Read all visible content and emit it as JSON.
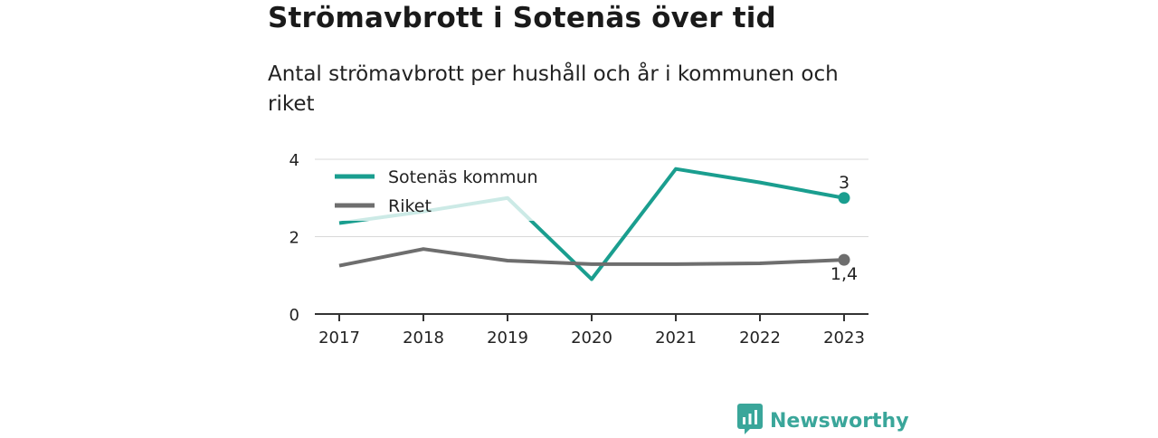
{
  "title": "Strömavbrott i Sotenäs över tid",
  "subtitle": "Antal strömavbrott per hushåll och år i kommunen och riket",
  "brand": {
    "name": "Newsworthy",
    "icon": "newsworthy-logo-icon"
  },
  "chart_data": {
    "type": "line",
    "x": [
      "2017",
      "2018",
      "2019",
      "2020",
      "2021",
      "2022",
      "2023"
    ],
    "ylim": [
      0,
      4
    ],
    "yticks": [
      "0",
      "2",
      "4"
    ],
    "grid": true,
    "legend_position": "top-left",
    "series": [
      {
        "name": "Sotenäs kommun",
        "color": "#1a9e8f",
        "values": [
          2.35,
          2.65,
          3.0,
          0.9,
          3.75,
          3.4,
          3.0
        ],
        "end_label": "3"
      },
      {
        "name": "Riket",
        "color": "#6e6e6e",
        "values": [
          1.25,
          1.68,
          1.38,
          1.29,
          1.29,
          1.31,
          1.4
        ],
        "end_label": "1,4"
      }
    ]
  }
}
